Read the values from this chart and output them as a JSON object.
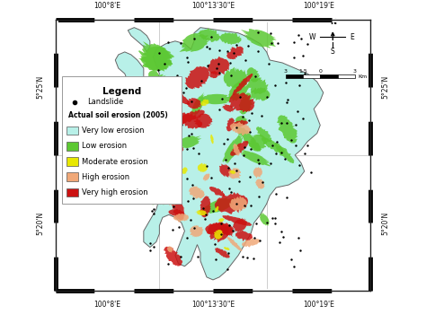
{
  "bg_color": "#ffffff",
  "very_low_color": "#b8f0e8",
  "low_color": "#5cc832",
  "moderate_color": "#e8e800",
  "high_color": "#f0a878",
  "very_high_color": "#cc1111",
  "landslide_color": "#000000",
  "grid_color": "#bbbbbb",
  "border_color": "#333333",
  "x_tick_labels_top": [
    "100°8'E",
    "100°13'30\"E",
    "100°19'E"
  ],
  "x_tick_labels_bot": [
    "100°8'E",
    "100°13'30\"E",
    "100°19'E"
  ],
  "y_tick_labels_left": [
    "5°25'N",
    "5°20'N"
  ],
  "y_tick_labels_right": [
    "5°25'N",
    "5°20'N"
  ],
  "legend_title": "Legend",
  "legend_landslide": "Landslide",
  "legend_erosion_header": "Actual soil erosion (2005)",
  "legend_items": [
    "Very low erosion",
    "Low erosion",
    "Moderate erosion",
    "High erosion",
    "Very high erosion"
  ],
  "legend_colors": [
    "#b8f0e8",
    "#5cc832",
    "#e8e800",
    "#f0a878",
    "#cc1111"
  ],
  "compass_labels": [
    "N",
    "W",
    "E",
    "S"
  ],
  "scale_labels": [
    "3",
    "1,5",
    "0",
    "3",
    "Km"
  ]
}
